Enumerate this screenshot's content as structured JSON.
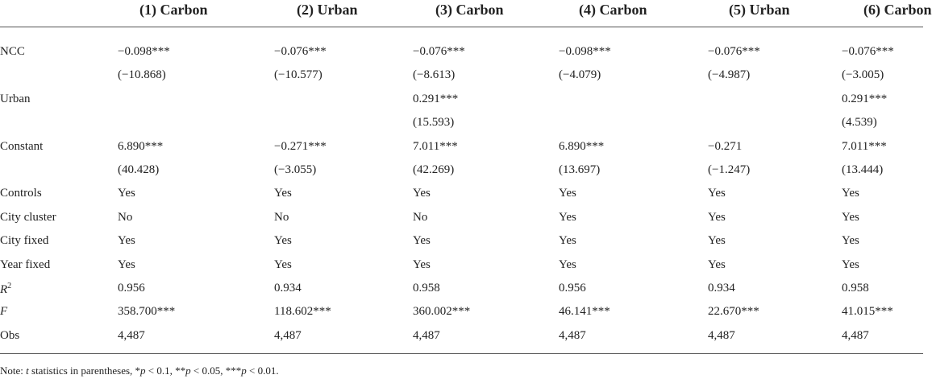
{
  "table": {
    "columns": [
      "(1) Carbon",
      "(2) Urban",
      "(3) Carbon",
      "(4) Carbon",
      "(5) Urban",
      "(6) Carbon"
    ],
    "rows": [
      {
        "label": "NCC",
        "cells": [
          "−0.098***",
          "−0.076***",
          "−0.076***",
          "−0.098***",
          "−0.076***",
          "−0.076***"
        ]
      },
      {
        "label": null,
        "cells": [
          "(−10.868)",
          "(−10.577)",
          "(−8.613)",
          "(−4.079)",
          "(−4.987)",
          "(−3.005)"
        ]
      },
      {
        "label": "Urban",
        "cells": [
          null,
          null,
          "0.291***",
          null,
          null,
          "0.291***"
        ]
      },
      {
        "label": null,
        "cells": [
          null,
          null,
          "(15.593)",
          null,
          null,
          "(4.539)"
        ]
      },
      {
        "label": "Constant",
        "cells": [
          "6.890***",
          "−0.271***",
          "7.011***",
          "6.890***",
          "−0.271",
          "7.011***"
        ]
      },
      {
        "label": null,
        "cells": [
          "(40.428)",
          "(−3.055)",
          "(42.269)",
          "(13.697)",
          "(−1.247)",
          "(13.444)"
        ]
      },
      {
        "label": "Controls",
        "cells": [
          "Yes",
          "Yes",
          "Yes",
          "Yes",
          "Yes",
          "Yes"
        ]
      },
      {
        "label": "City cluster",
        "cells": [
          "No",
          "No",
          "No",
          "Yes",
          "Yes",
          "Yes"
        ]
      },
      {
        "label": "City fixed",
        "cells": [
          "Yes",
          "Yes",
          "Yes",
          "Yes",
          "Yes",
          "Yes"
        ]
      },
      {
        "label": "Year fixed",
        "cells": [
          "Yes",
          "Yes",
          "Yes",
          "Yes",
          "Yes",
          "Yes"
        ]
      },
      {
        "label": "R",
        "label_sup": "2",
        "italic": true,
        "cells": [
          "0.956",
          "0.934",
          "0.958",
          "0.956",
          "0.934",
          "0.958"
        ]
      },
      {
        "label": "F",
        "italic": true,
        "cells": [
          "358.700***",
          "118.602***",
          "360.002***",
          "46.141***",
          "22.670***",
          "41.015***"
        ]
      },
      {
        "label": "Obs",
        "cells": [
          "4,487",
          "4,487",
          "4,487",
          "4,487",
          "4,487",
          "4,487"
        ]
      }
    ]
  },
  "note": [
    {
      "text": "Note: "
    },
    {
      "text": "t",
      "italic": true
    },
    {
      "text": " statistics in parentheses, *"
    },
    {
      "text": "p",
      "italic": true
    },
    {
      "text": " < 0.1, **"
    },
    {
      "text": "p",
      "italic": true
    },
    {
      "text": " < 0.05, ***"
    },
    {
      "text": "p",
      "italic": true
    },
    {
      "text": " < 0.01."
    }
  ]
}
